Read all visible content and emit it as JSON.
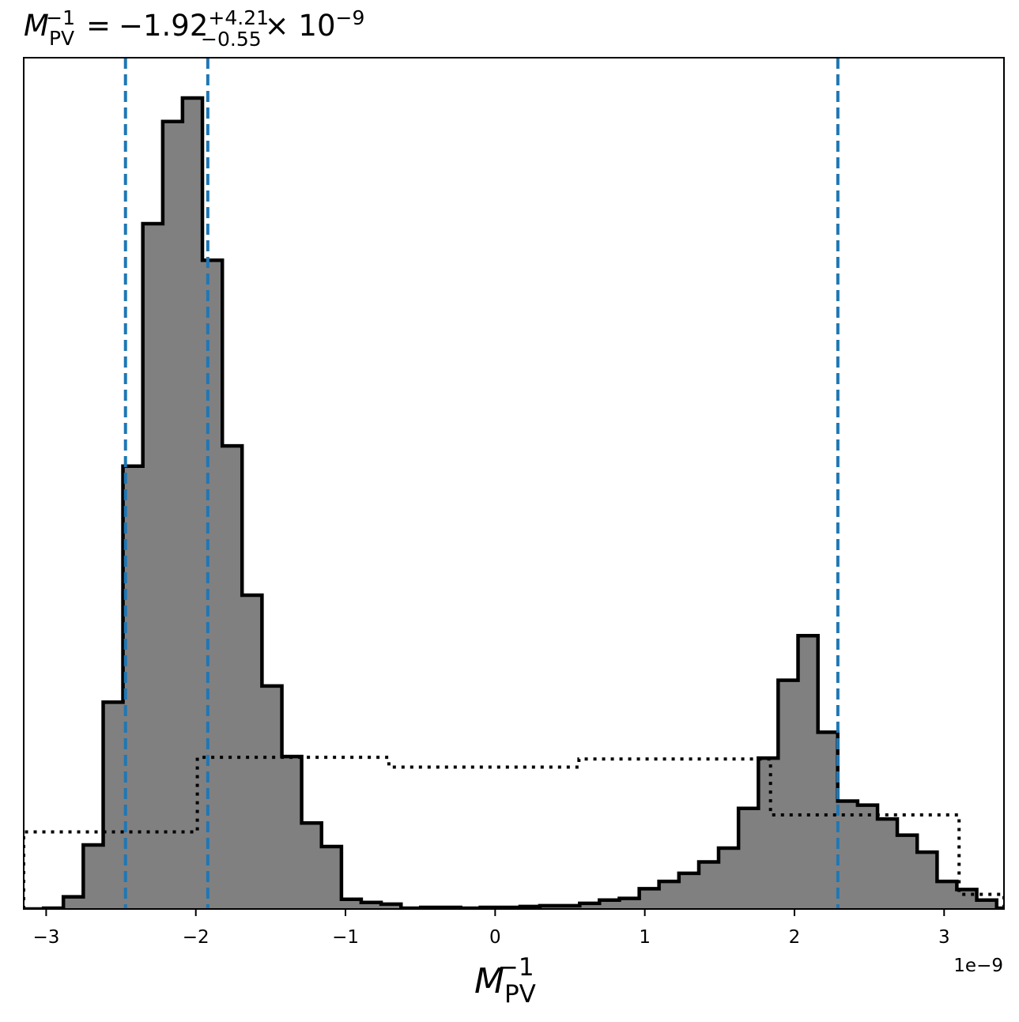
{
  "chart_data": {
    "type": "histogram",
    "title": {
      "symbol": "M",
      "symbol_sub": "PV",
      "symbol_sup": "−1",
      "equals": "=",
      "median": "−1.92",
      "upper": "+4.21",
      "lower": "−0.55",
      "multiplier": "× 10",
      "multiplier_exp": "−9"
    },
    "xlabel": {
      "symbol": "M",
      "sub": "PV",
      "sup": "−1"
    },
    "ylabel": "",
    "x_offset_label": "1e−9",
    "xlim": [
      -3.15,
      3.4
    ],
    "ylim": [
      0,
      1.0
    ],
    "x_ticks": [
      {
        "value": -3,
        "label": "−3"
      },
      {
        "value": -2,
        "label": "−2"
      },
      {
        "value": -1,
        "label": "−1"
      },
      {
        "value": 0,
        "label": "0"
      },
      {
        "value": 1,
        "label": "1"
      },
      {
        "value": 2,
        "label": "2"
      },
      {
        "value": 3,
        "label": "3"
      }
    ],
    "y_ticks_visible": false,
    "posterior": {
      "color": "#808080",
      "edge_color": "#000000",
      "bin_edges": [
        -3.15,
        -3.017,
        -2.885,
        -2.752,
        -2.619,
        -2.487,
        -2.354,
        -2.221,
        -2.089,
        -1.956,
        -1.823,
        -1.691,
        -1.558,
        -1.425,
        -1.293,
        -1.16,
        -1.027,
        -0.895,
        -0.762,
        -0.629,
        -0.497,
        -0.364,
        -0.231,
        -0.099,
        0.034,
        0.167,
        0.299,
        0.432,
        0.565,
        0.697,
        0.83,
        0.963,
        1.095,
        1.228,
        1.361,
        1.493,
        1.626,
        1.759,
        1.891,
        2.024,
        2.157,
        2.289,
        2.422,
        2.555,
        2.687,
        2.82,
        2.953,
        3.085,
        3.218,
        3.351,
        3.4
      ],
      "counts": [
        0.0,
        0.001,
        0.015,
        0.079,
        0.255,
        0.546,
        0.845,
        0.971,
        1.0,
        0.8,
        0.571,
        0.387,
        0.275,
        0.188,
        0.106,
        0.077,
        0.012,
        0.008,
        0.006,
        0.001,
        0.002,
        0.002,
        0.001,
        0.002,
        0.002,
        0.003,
        0.004,
        0.004,
        0.007,
        0.011,
        0.013,
        0.025,
        0.034,
        0.044,
        0.058,
        0.075,
        0.124,
        0.186,
        0.282,
        0.337,
        0.218,
        0.133,
        0.128,
        0.111,
        0.091,
        0.07,
        0.034,
        0.024,
        0.011,
        0.001
      ]
    },
    "prior": {
      "style": "dotted",
      "color": "#000000",
      "bin_edges": [
        -3.15,
        -1.99,
        -0.71,
        0.56,
        1.84,
        3.1,
        3.4
      ],
      "heights": [
        0.095,
        0.187,
        0.175,
        0.185,
        0.116,
        0.018
      ]
    },
    "quantile_lines": {
      "color": "#1f77b4",
      "style": "dashed",
      "values": [
        -2.47,
        -1.92,
        2.29
      ]
    }
  }
}
